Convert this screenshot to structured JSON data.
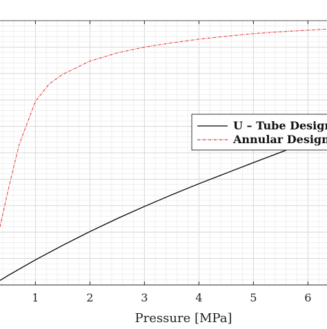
{
  "chart_data": {
    "type": "line",
    "xlabel": "Pressure [MPa]",
    "xlim": [
      0.35,
      6.35
    ],
    "ylim": [
      0,
      1
    ],
    "xticks": [
      1,
      2,
      3,
      4,
      5,
      6
    ],
    "grid": true,
    "minor_grid": true,
    "legend_position": "right",
    "series": [
      {
        "name": "U – Tube Design",
        "color": "#000000",
        "style": "solid",
        "x": [
          0.35,
          0.5,
          1.0,
          1.5,
          2.0,
          2.5,
          3.0,
          3.5,
          4.0,
          4.5,
          5.0,
          5.5,
          6.0,
          6.35
        ],
        "y": [
          0.017,
          0.036,
          0.095,
          0.15,
          0.202,
          0.251,
          0.297,
          0.341,
          0.383,
          0.423,
          0.463,
          0.502,
          0.541,
          0.568
        ]
      },
      {
        "name": "Annular Design",
        "color": "#e8312f",
        "style": "dashdot",
        "x": [
          0.35,
          0.5,
          0.7,
          1.0,
          1.25,
          1.5,
          2.0,
          2.5,
          3.0,
          3.5,
          4.0,
          4.5,
          5.0,
          5.5,
          6.0,
          6.35
        ],
        "y": [
          0.22,
          0.36,
          0.53,
          0.695,
          0.76,
          0.797,
          0.847,
          0.878,
          0.9,
          0.916,
          0.93,
          0.941,
          0.951,
          0.958,
          0.964,
          0.968
        ]
      }
    ]
  }
}
